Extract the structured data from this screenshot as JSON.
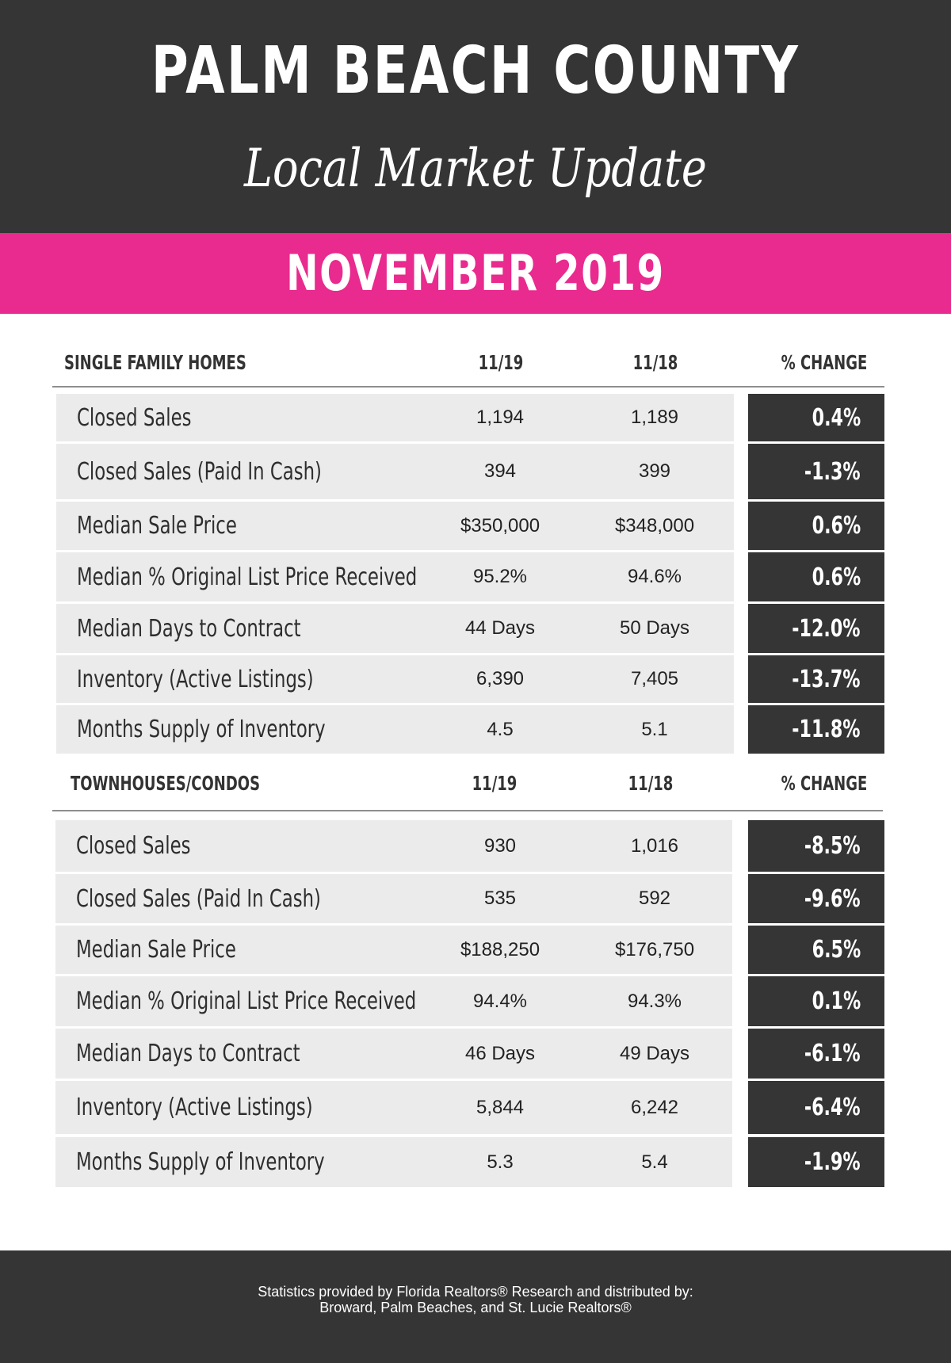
{
  "header": {
    "title": "PALM BEACH COUNTY",
    "subtitle": "Local Market Update",
    "month": "NOVEMBER 2019"
  },
  "colors": {
    "dark": "#353535",
    "accent": "#e92a8e",
    "row_bg": "#ebebeb"
  },
  "single_family": {
    "heading": "SINGLE FAMILY HOMES",
    "col1": "11/19",
    "col2": "11/18",
    "col3": "% CHANGE",
    "rows": [
      {
        "label": "Closed Sales",
        "current": "1,194",
        "prior": "1,189",
        "change": "0.4%"
      },
      {
        "label": "Closed Sales (Paid In Cash)",
        "current": "394",
        "prior": "399",
        "change": "-1.3%"
      },
      {
        "label": "Median Sale Price",
        "current": "$350,000",
        "prior": "$348,000",
        "change": "0.6%"
      },
      {
        "label": "Median % Original List Price Received",
        "current": "95.2%",
        "prior": "94.6%",
        "change": "0.6%"
      },
      {
        "label": "Median Days to Contract",
        "current": "44 Days",
        "prior": "50 Days",
        "change": "-12.0%"
      },
      {
        "label": "Inventory (Active Listings)",
        "current": "6,390",
        "prior": "7,405",
        "change": "-13.7%"
      },
      {
        "label": "Months Supply of Inventory",
        "current": "4.5",
        "prior": "5.1",
        "change": "-11.8%"
      }
    ]
  },
  "townhouses": {
    "heading": "TOWNHOUSES/CONDOS",
    "col1": "11/19",
    "col2": "11/18",
    "col3": "% CHANGE",
    "rows": [
      {
        "label": "Closed Sales",
        "current": "930",
        "prior": "1,016",
        "change": "-8.5%"
      },
      {
        "label": "Closed Sales (Paid In Cash)",
        "current": "535",
        "prior": "592",
        "change": "-9.6%"
      },
      {
        "label": "Median Sale Price",
        "current": "$188,250",
        "prior": "$176,750",
        "change": "6.5%"
      },
      {
        "label": "Median % Original List Price Received",
        "current": "94.4%",
        "prior": "94.3%",
        "change": "0.1%"
      },
      {
        "label": "Median Days to Contract",
        "current": "46 Days",
        "prior": "49 Days",
        "change": "-6.1%"
      },
      {
        "label": "Inventory (Active Listings)",
        "current": "5,844",
        "prior": "6,242",
        "change": "-6.4%"
      },
      {
        "label": "Months Supply of Inventory",
        "current": "5.3",
        "prior": "5.4",
        "change": "-1.9%"
      }
    ]
  },
  "footer": {
    "line1": "Statistics provided by Florida Realtors® Research and distributed by:",
    "line2": "Broward, Palm Beaches, and St. Lucie Realtors®"
  }
}
